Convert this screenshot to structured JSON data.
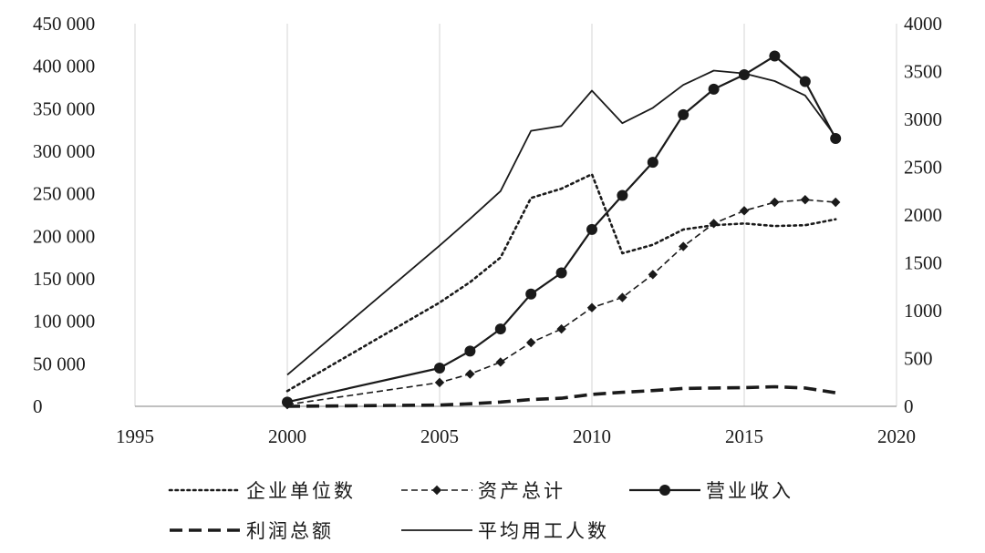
{
  "chart_data": {
    "type": "line",
    "xlim": [
      1995,
      2020
    ],
    "xticks": [
      "1995",
      "2000",
      "2005",
      "2010",
      "2015",
      "2020"
    ],
    "ylim_left": [
      0,
      450000
    ],
    "yticks_left": [
      "0",
      "50 000",
      "100 000",
      "150 000",
      "200 000",
      "250 000",
      "300 000",
      "350 000",
      "400 000",
      "450 000"
    ],
    "ylim_right": [
      0,
      4000
    ],
    "yticks_right": [
      "0",
      "500",
      "1000",
      "1500",
      "2000",
      "2500",
      "3000",
      "3500",
      "4000"
    ],
    "grid": "vertical",
    "legend_position": "bottom",
    "series": [
      {
        "name": "企业单位数",
        "axis": "left",
        "style": "dotted",
        "x": [
          2000,
          2005,
          2006,
          2007,
          2008,
          2009,
          2010,
          2011,
          2012,
          2013,
          2014,
          2015,
          2016,
          2017,
          2018
        ],
        "y": [
          18000,
          122000,
          146000,
          175000,
          245000,
          256000,
          273000,
          180000,
          190000,
          208000,
          213000,
          215000,
          212000,
          213000,
          220000
        ]
      },
      {
        "name": "资产总计",
        "axis": "left",
        "style": "dashed-diamond",
        "x": [
          2000,
          2005,
          2006,
          2007,
          2008,
          2009,
          2010,
          2011,
          2012,
          2013,
          2014,
          2015,
          2016,
          2017,
          2018
        ],
        "y": [
          2000,
          28000,
          38000,
          52000,
          75000,
          91000,
          116000,
          128000,
          155000,
          188000,
          215000,
          230000,
          240000,
          243000,
          240000
        ]
      },
      {
        "name": "营业收入",
        "axis": "left",
        "style": "solid-circle",
        "x": [
          2000,
          2005,
          2006,
          2007,
          2008,
          2009,
          2010,
          2011,
          2012,
          2013,
          2014,
          2015,
          2016,
          2017,
          2018
        ],
        "y": [
          5000,
          45000,
          65000,
          91000,
          132000,
          157000,
          208000,
          248000,
          287000,
          343000,
          373000,
          390000,
          412000,
          382000,
          315000
        ]
      },
      {
        "name": "利润总额",
        "axis": "left",
        "style": "heavy-dashed",
        "x": [
          2000,
          2005,
          2006,
          2007,
          2008,
          2009,
          2010,
          2011,
          2012,
          2013,
          2014,
          2015,
          2016,
          2017,
          2018
        ],
        "y": [
          0,
          1500,
          3000,
          5000,
          8000,
          9500,
          14000,
          16500,
          18500,
          21000,
          21500,
          22000,
          23000,
          21500,
          16000
        ]
      },
      {
        "name": "平均用工人数",
        "axis": "right",
        "style": "solid",
        "x": [
          2000,
          2005,
          2006,
          2007,
          2008,
          2009,
          2010,
          2011,
          2012,
          2013,
          2014,
          2015,
          2016,
          2017,
          2018
        ],
        "y": [
          330,
          1680,
          1960,
          2250,
          2880,
          2930,
          3300,
          2960,
          3120,
          3360,
          3510,
          3480,
          3400,
          3250,
          2820
        ]
      }
    ]
  }
}
